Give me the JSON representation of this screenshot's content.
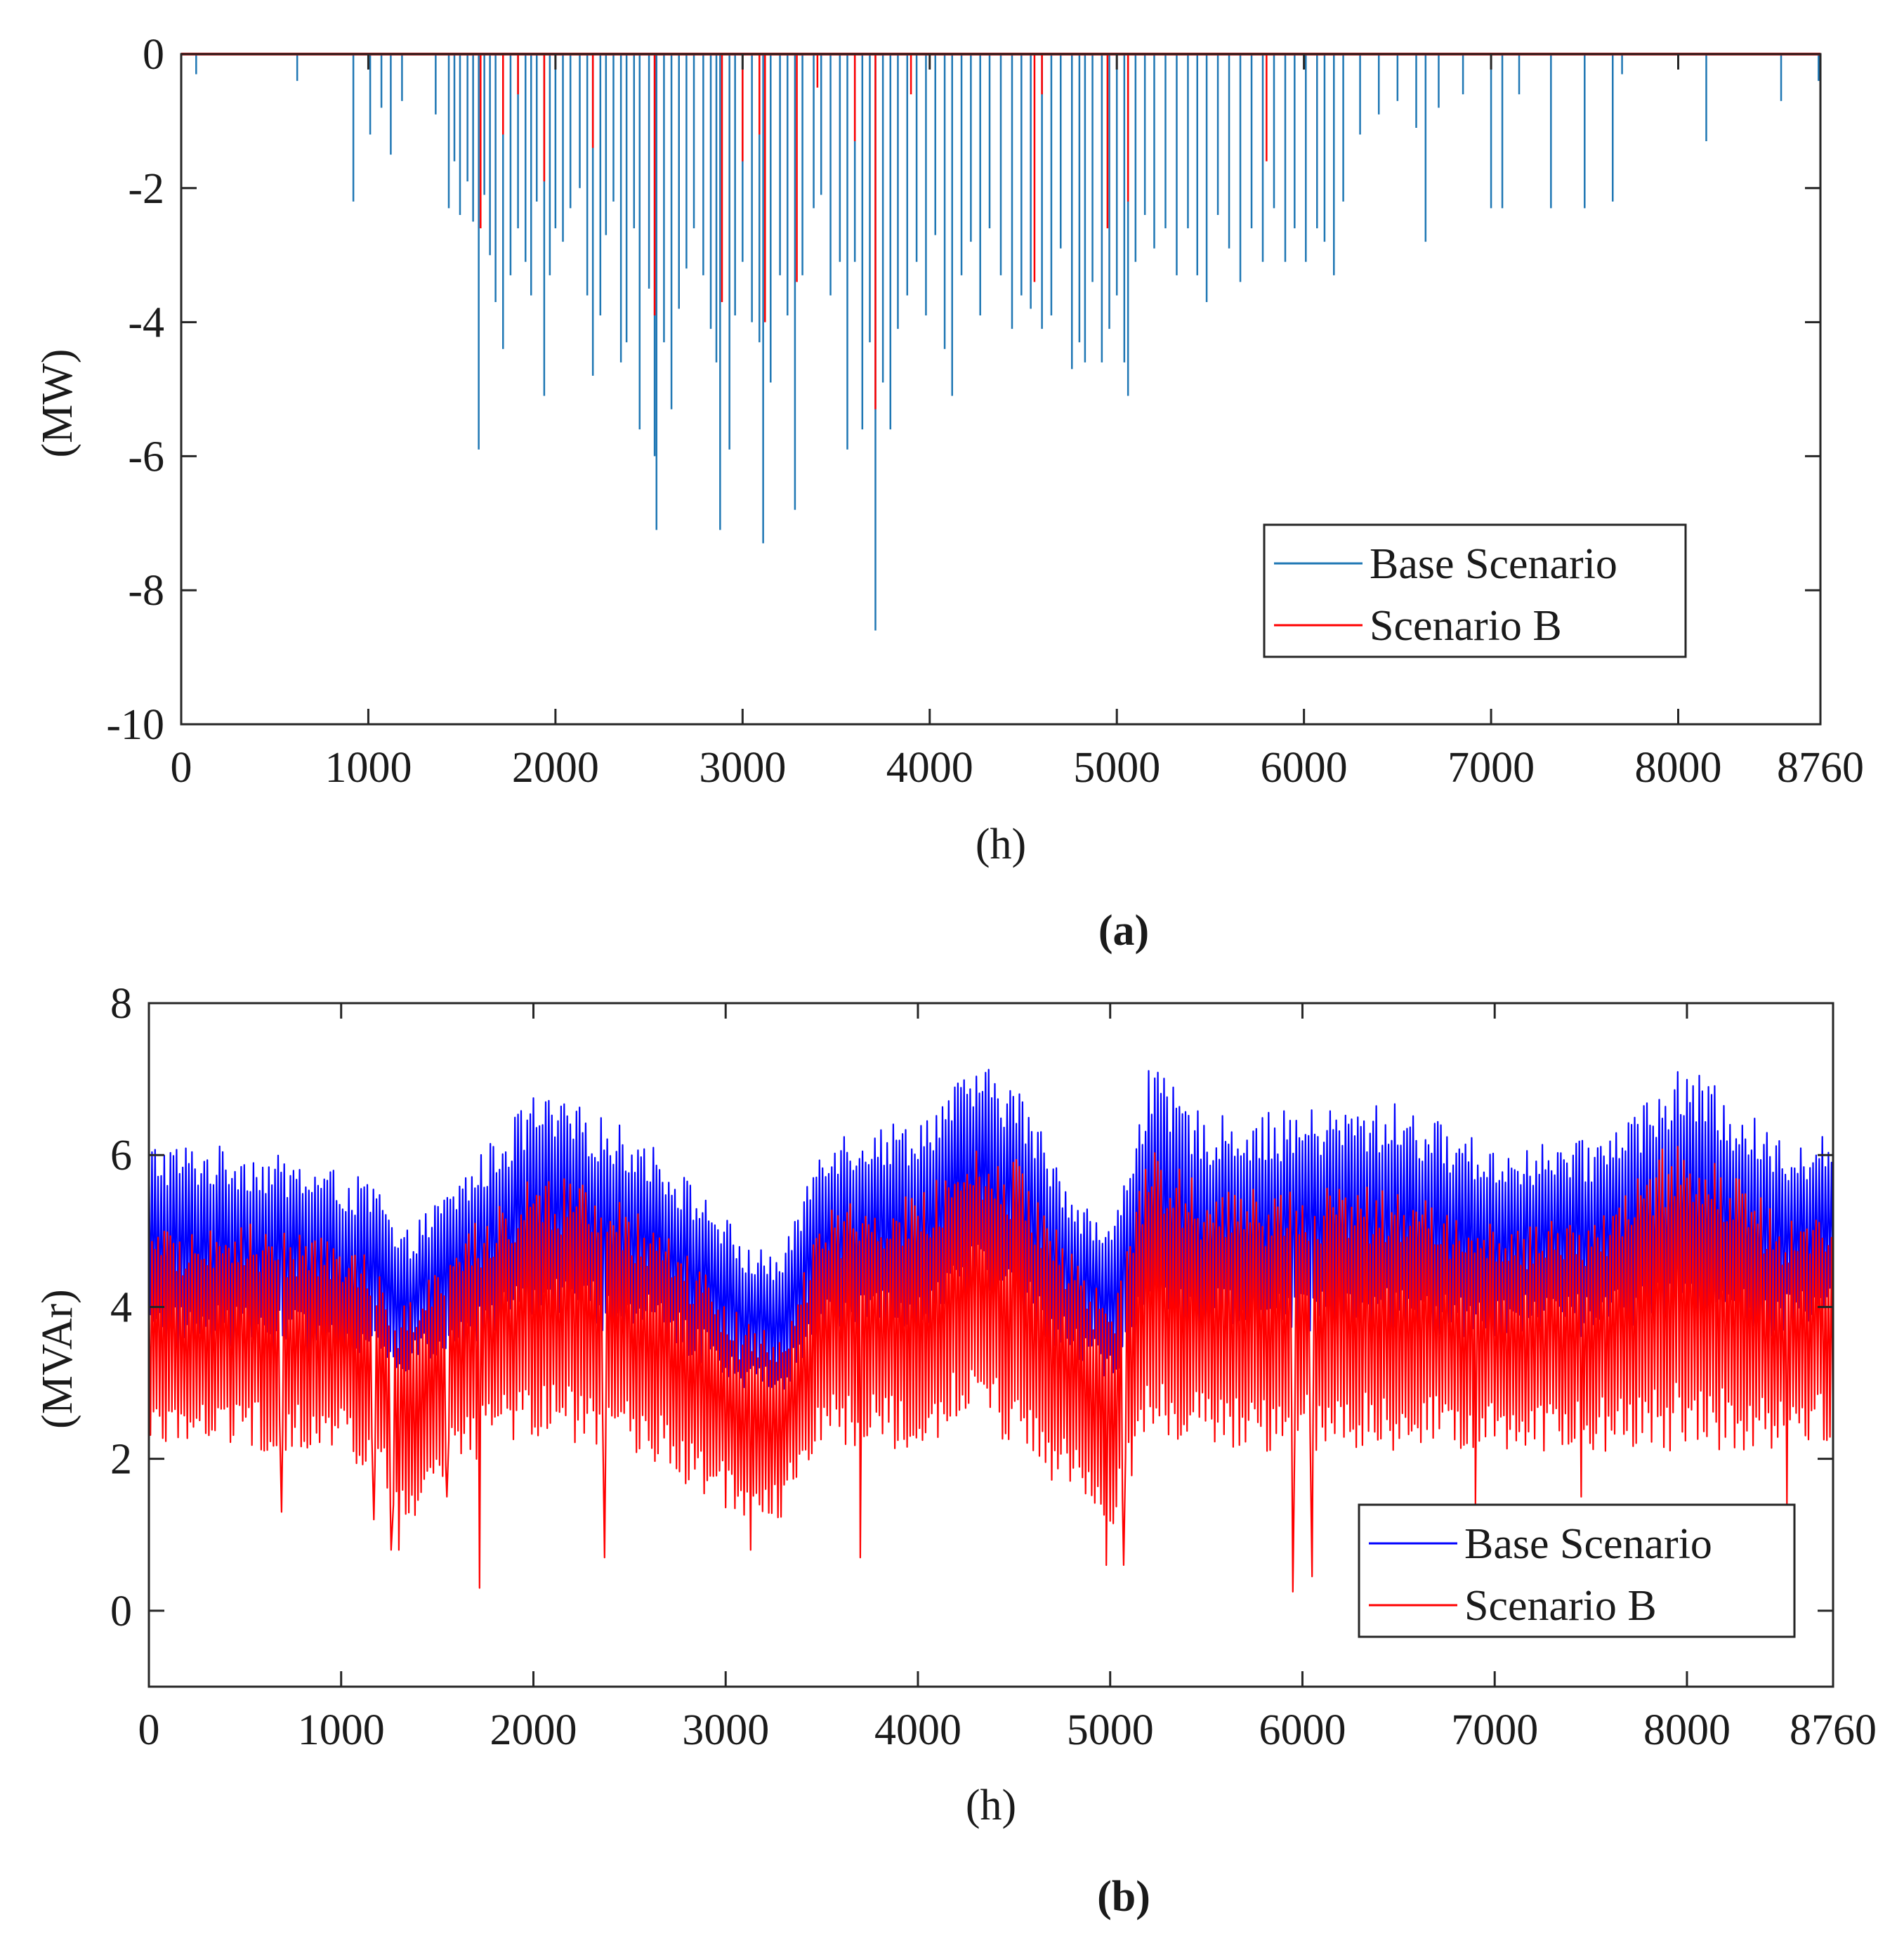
{
  "chart_data": [
    {
      "panel_label": "(a)",
      "type": "line",
      "xlabel": "(h)",
      "ylabel": "(MW)",
      "xlim": [
        0,
        8760
      ],
      "ylim": [
        -10,
        0
      ],
      "xticks": [
        0,
        1000,
        2000,
        3000,
        4000,
        5000,
        6000,
        7000,
        8000,
        8760
      ],
      "xtick_labels": [
        "0",
        "1000",
        "2000",
        "3000",
        "4000",
        "5000",
        "6000",
        "7000",
        "8000",
        "8760"
      ],
      "yticks": [
        0,
        -2,
        -4,
        -6,
        -8,
        -10
      ],
      "ytick_labels": [
        "0",
        "-2",
        "-4",
        "-6",
        "-8",
        "-10"
      ],
      "grid": false,
      "legend_position": "bottom-right",
      "series": [
        {
          "name": "Base Scenario",
          "color": "#1f77b4",
          "style": "downward spikes from 0",
          "spikes": [
            [
              0,
              -1.5
            ],
            [
              80,
              -0.3
            ],
            [
              620,
              -0.4
            ],
            [
              920,
              -2.2
            ],
            [
              1010,
              -1.2
            ],
            [
              1070,
              -0.8
            ],
            [
              1120,
              -1.5
            ],
            [
              1180,
              -0.7
            ],
            [
              1360,
              -0.9
            ],
            [
              1430,
              -2.3
            ],
            [
              1460,
              -1.6
            ],
            [
              1490,
              -2.4
            ],
            [
              1530,
              -1.9
            ],
            [
              1560,
              -2.5
            ],
            [
              1590,
              -5.9
            ],
            [
              1620,
              -2.1
            ],
            [
              1650,
              -3.0
            ],
            [
              1680,
              -3.7
            ],
            [
              1720,
              -4.4
            ],
            [
              1760,
              -3.3
            ],
            [
              1800,
              -2.6
            ],
            [
              1840,
              -3.1
            ],
            [
              1870,
              -3.6
            ],
            [
              1900,
              -2.2
            ],
            [
              1940,
              -5.1
            ],
            [
              1970,
              -3.3
            ],
            [
              2000,
              -2.6
            ],
            [
              2040,
              -2.8
            ],
            [
              2080,
              -2.3
            ],
            [
              2130,
              -2.0
            ],
            [
              2170,
              -3.6
            ],
            [
              2200,
              -4.8
            ],
            [
              2240,
              -3.9
            ],
            [
              2270,
              -2.7
            ],
            [
              2310,
              -2.2
            ],
            [
              2350,
              -4.6
            ],
            [
              2380,
              -4.3
            ],
            [
              2420,
              -2.6
            ],
            [
              2450,
              -5.6
            ],
            [
              2500,
              -3.5
            ],
            [
              2530,
              -6.0
            ],
            [
              2540,
              -7.1
            ],
            [
              2580,
              -4.3
            ],
            [
              2620,
              -5.3
            ],
            [
              2660,
              -3.8
            ],
            [
              2700,
              -3.2
            ],
            [
              2740,
              -2.6
            ],
            [
              2790,
              -3.3
            ],
            [
              2830,
              -4.1
            ],
            [
              2860,
              -4.6
            ],
            [
              2880,
              -7.1
            ],
            [
              2930,
              -5.9
            ],
            [
              2960,
              -3.9
            ],
            [
              3000,
              -3.1
            ],
            [
              3050,
              -4.0
            ],
            [
              3090,
              -4.3
            ],
            [
              3110,
              -7.3
            ],
            [
              3150,
              -4.9
            ],
            [
              3200,
              -3.3
            ],
            [
              3240,
              -3.9
            ],
            [
              3280,
              -6.8
            ],
            [
              3320,
              -3.3
            ],
            [
              3380,
              -2.3
            ],
            [
              3420,
              -2.1
            ],
            [
              3470,
              -3.6
            ],
            [
              3520,
              -3.1
            ],
            [
              3560,
              -5.9
            ],
            [
              3600,
              -3.1
            ],
            [
              3640,
              -5.6
            ],
            [
              3680,
              -4.3
            ],
            [
              3710,
              -8.6
            ],
            [
              3750,
              -4.9
            ],
            [
              3790,
              -5.6
            ],
            [
              3830,
              -4.1
            ],
            [
              3880,
              -3.6
            ],
            [
              3930,
              -3.1
            ],
            [
              3980,
              -3.9
            ],
            [
              4030,
              -2.7
            ],
            [
              4080,
              -4.4
            ],
            [
              4120,
              -5.1
            ],
            [
              4170,
              -3.3
            ],
            [
              4220,
              -2.8
            ],
            [
              4270,
              -3.9
            ],
            [
              4320,
              -2.6
            ],
            [
              4380,
              -3.3
            ],
            [
              4440,
              -4.1
            ],
            [
              4490,
              -3.6
            ],
            [
              4540,
              -3.8
            ],
            [
              4600,
              -4.1
            ],
            [
              4650,
              -3.9
            ],
            [
              4700,
              -2.9
            ],
            [
              4760,
              -4.7
            ],
            [
              4800,
              -4.3
            ],
            [
              4830,
              -4.6
            ],
            [
              4870,
              -3.4
            ],
            [
              4920,
              -4.6
            ],
            [
              4960,
              -4.1
            ],
            [
              5000,
              -3.6
            ],
            [
              5040,
              -4.6
            ],
            [
              5060,
              -5.1
            ],
            [
              5100,
              -3.1
            ],
            [
              5150,
              -2.4
            ],
            [
              5200,
              -2.9
            ],
            [
              5260,
              -2.6
            ],
            [
              5320,
              -3.3
            ],
            [
              5380,
              -2.6
            ],
            [
              5430,
              -3.3
            ],
            [
              5480,
              -3.7
            ],
            [
              5540,
              -2.4
            ],
            [
              5600,
              -2.9
            ],
            [
              5660,
              -3.4
            ],
            [
              5720,
              -2.6
            ],
            [
              5780,
              -3.1
            ],
            [
              5840,
              -2.3
            ],
            [
              5900,
              -3.1
            ],
            [
              5950,
              -2.6
            ],
            [
              6010,
              -3.1
            ],
            [
              6070,
              -2.6
            ],
            [
              6110,
              -2.8
            ],
            [
              6160,
              -3.3
            ],
            [
              6210,
              -2.2
            ],
            [
              6300,
              -1.2
            ],
            [
              6400,
              -0.9
            ],
            [
              6500,
              -0.7
            ],
            [
              6600,
              -1.1
            ],
            [
              6650,
              -2.8
            ],
            [
              6720,
              -0.8
            ],
            [
              6850,
              -0.6
            ],
            [
              7000,
              -2.3
            ],
            [
              7060,
              -2.3
            ],
            [
              7150,
              -0.6
            ],
            [
              7320,
              -2.3
            ],
            [
              7500,
              -2.3
            ],
            [
              7650,
              -2.2
            ],
            [
              7700,
              -0.3
            ],
            [
              8150,
              -1.3
            ],
            [
              8550,
              -0.7
            ],
            [
              8750,
              -0.4
            ]
          ]
        },
        {
          "name": "Scenario B",
          "color": "#ff0000",
          "style": "downward spikes from 0",
          "spikes": [
            [
              1600,
              -2.6
            ],
            [
              1720,
              -1.2
            ],
            [
              1800,
              -0.6
            ],
            [
              1940,
              -1.9
            ],
            [
              2200,
              -1.4
            ],
            [
              2530,
              -3.9
            ],
            [
              2890,
              -3.7
            ],
            [
              3000,
              -1.6
            ],
            [
              3090,
              -1.2
            ],
            [
              3120,
              -4.0
            ],
            [
              3290,
              -3.4
            ],
            [
              3400,
              -0.5
            ],
            [
              3600,
              -1.3
            ],
            [
              3710,
              -5.3
            ],
            [
              3900,
              -0.6
            ],
            [
              4560,
              -3.4
            ],
            [
              4600,
              -0.6
            ],
            [
              4950,
              -2.6
            ],
            [
              5060,
              -2.2
            ],
            [
              5800,
              -1.6
            ]
          ]
        }
      ]
    },
    {
      "panel_label": "(b)",
      "type": "line",
      "xlabel": "(h)",
      "ylabel": "(MVAr)",
      "xlim": [
        0,
        8760
      ],
      "ylim": [
        -1,
        8
      ],
      "xticks": [
        0,
        1000,
        2000,
        3000,
        4000,
        5000,
        6000,
        7000,
        8000,
        8760
      ],
      "xtick_labels": [
        "0",
        "1000",
        "2000",
        "3000",
        "4000",
        "5000",
        "6000",
        "7000",
        "8000",
        "8760"
      ],
      "yticks": [
        0,
        2,
        4,
        6,
        8
      ],
      "ytick_labels": [
        "0",
        "2",
        "4",
        "6",
        "8"
      ],
      "grid": false,
      "legend_position": "bottom-right",
      "series": [
        {
          "name": "Base Scenario",
          "color": "#0000ff",
          "envelope_x": [
            0,
            500,
            1000,
            1200,
            1300,
            1500,
            2000,
            2300,
            2600,
            3000,
            3100,
            3300,
            3500,
            4000,
            4300,
            4500,
            4800,
            5000,
            5200,
            5500,
            6000,
            6500,
            7000,
            7500,
            8000,
            8500,
            8760
          ],
          "envelope_max": [
            6.2,
            6.1,
            5.8,
            5.6,
            4.9,
            5.4,
            6.8,
            6.6,
            6.2,
            5.2,
            4.8,
            4.7,
            6.3,
            6.5,
            7.2,
            7.0,
            5.6,
            5.0,
            7.2,
            6.5,
            6.6,
            6.7,
            6.1,
            6.2,
            7.2,
            6.2,
            6.3
          ],
          "envelope_min": [
            3.4,
            3.5,
            3.3,
            3.2,
            3.1,
            3.3,
            3.7,
            3.7,
            3.6,
            3.1,
            2.9,
            2.9,
            3.6,
            3.7,
            4.2,
            3.9,
            3.3,
            3.0,
            3.6,
            3.6,
            3.6,
            3.6,
            3.6,
            3.6,
            3.6,
            3.6,
            3.8
          ]
        },
        {
          "name": "Scenario B",
          "color": "#ff0000",
          "envelope_x": [
            0,
            500,
            1000,
            1200,
            1300,
            1500,
            2000,
            2300,
            2600,
            3000,
            3100,
            3300,
            3500,
            4000,
            4300,
            4500,
            4800,
            5000,
            5200,
            5500,
            6000,
            6500,
            7000,
            7500,
            8000,
            8500,
            8760
          ],
          "envelope_max": [
            5.0,
            5.1,
            4.9,
            4.6,
            4.0,
            4.7,
            5.8,
            5.6,
            5.2,
            4.2,
            3.8,
            3.7,
            5.3,
            5.5,
            6.1,
            6.0,
            4.7,
            4.0,
            6.3,
            5.5,
            5.6,
            5.6,
            5.1,
            5.2,
            6.4,
            5.2,
            5.3
          ],
          "envelope_min": [
            2.2,
            2.1,
            2.1,
            1.7,
            0.9,
            1.7,
            2.3,
            2.1,
            2.0,
            1.3,
            1.1,
            1.2,
            2.2,
            2.1,
            2.6,
            2.1,
            1.5,
            1.0,
            2.2,
            2.1,
            2.1,
            2.1,
            2.1,
            2.1,
            2.1,
            2.1,
            2.2
          ],
          "dips": [
            [
              690,
              1.3
            ],
            [
              1170,
              1.2
            ],
            [
              1260,
              0.8
            ],
            [
              1300,
              0.8
            ],
            [
              1550,
              1.5
            ],
            [
              1720,
              0.3
            ],
            [
              2370,
              0.7
            ],
            [
              3130,
              0.8
            ],
            [
              3700,
              0.7
            ],
            [
              4980,
              0.6
            ],
            [
              5070,
              0.6
            ],
            [
              5950,
              0.25
            ],
            [
              6050,
              0.45
            ],
            [
              6900,
              1.4
            ],
            [
              7450,
              1.5
            ],
            [
              8520,
              1.4
            ]
          ]
        }
      ]
    }
  ]
}
